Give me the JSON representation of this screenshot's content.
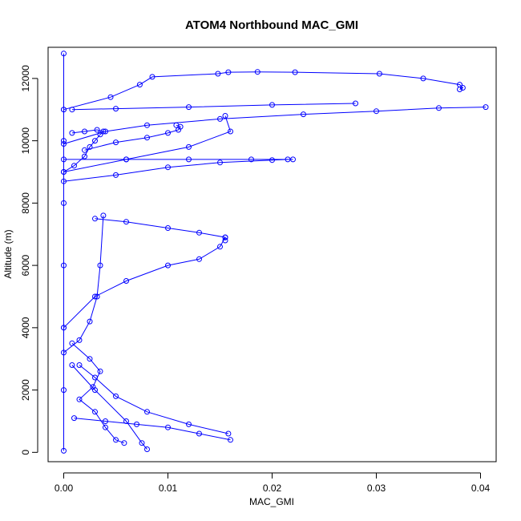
{
  "chart_data": {
    "type": "scatter",
    "title": "ATOM4 Northbound MAC_GMI",
    "xlabel": "MAC_GMI",
    "ylabel": "Altitude (m)",
    "xlim": [
      -0.0015,
      0.0415
    ],
    "ylim": [
      -300,
      13000
    ],
    "x_ticks": [
      0,
      0.01,
      0.02,
      0.03,
      0.04
    ],
    "x_tick_labels": [
      "0.00",
      "0.01",
      "0.02",
      "0.03",
      "0.04"
    ],
    "y_ticks": [
      0,
      2000,
      4000,
      6000,
      8000,
      10000,
      12000
    ],
    "y_tick_labels": [
      "0",
      "2000",
      "4000",
      "6000",
      "8000",
      "10000",
      "12000"
    ],
    "grid": false,
    "legend": "none",
    "marker": "open-circle",
    "connected": true,
    "color": "#0000ff",
    "series": [
      {
        "x": [
          0.0,
          0.0,
          0.0,
          0.0,
          0.0,
          0.0,
          0.0,
          0.0
        ],
        "y": [
          50,
          2000,
          4000,
          6000,
          8000,
          10000,
          11000,
          12800
        ]
      },
      {
        "x": [
          0.0,
          0.0045,
          0.0073,
          0.0085,
          0.0148,
          0.0158,
          0.0186,
          0.0222,
          0.0303,
          0.0345,
          0.038,
          0.0383,
          0.038
        ],
        "y": [
          11000,
          11400,
          11800,
          12050,
          12150,
          12200,
          12210,
          12200,
          12150,
          12000,
          11800,
          11700,
          11650
        ]
      },
      {
        "x": [
          0.0,
          0.004,
          0.008,
          0.015,
          0.023,
          0.03,
          0.036,
          0.0405
        ],
        "y": [
          9900,
          10300,
          10500,
          10700,
          10850,
          10950,
          11050,
          11080
        ]
      },
      {
        "x": [
          0.0008,
          0.005,
          0.012,
          0.02,
          0.028
        ],
        "y": [
          11000,
          11030,
          11080,
          11150,
          11200
        ]
      },
      {
        "x": [
          0.0,
          0.005,
          0.01,
          0.015,
          0.02,
          0.0215
        ],
        "y": [
          8700,
          8900,
          9150,
          9300,
          9380,
          9400
        ]
      },
      {
        "x": [
          0.0,
          0.006,
          0.012,
          0.018,
          0.022
        ],
        "y": [
          9400,
          9400,
          9400,
          9400,
          9400
        ]
      },
      {
        "x": [
          0.002,
          0.005,
          0.008,
          0.01,
          0.011,
          0.0112,
          0.0108
        ],
        "y": [
          9700,
          9950,
          10100,
          10250,
          10350,
          10450,
          10500
        ]
      },
      {
        "x": [
          0.003,
          0.006,
          0.01,
          0.013,
          0.0155,
          0.0155
        ],
        "y": [
          7500,
          7400,
          7200,
          7050,
          6900,
          6800
        ]
      },
      {
        "x": [
          0.0,
          0.003,
          0.006,
          0.01,
          0.013,
          0.015,
          0.0155
        ],
        "y": [
          4000,
          5000,
          5500,
          6000,
          6200,
          6600,
          6900
        ]
      },
      {
        "x": [
          0.0008,
          0.0025,
          0.0035,
          0.0028,
          0.0015,
          0.003,
          0.004,
          0.005,
          0.0058
        ],
        "y": [
          3500,
          3000,
          2600,
          2100,
          1700,
          1300,
          800,
          400,
          300
        ]
      },
      {
        "x": [
          0.001,
          0.004,
          0.007,
          0.01,
          0.013,
          0.016
        ],
        "y": [
          1100,
          1000,
          900,
          800,
          600,
          400
        ]
      },
      {
        "x": [
          0.0008,
          0.003,
          0.006,
          0.0075,
          0.008
        ],
        "y": [
          2800,
          2000,
          1000,
          300,
          100
        ]
      },
      {
        "x": [
          0.0015,
          0.003,
          0.005,
          0.008,
          0.012,
          0.0158
        ],
        "y": [
          2800,
          2400,
          1800,
          1300,
          900,
          600
        ]
      },
      {
        "x": [
          0.0,
          0.0015,
          0.0025,
          0.0032,
          0.0035,
          0.0038
        ],
        "y": [
          3200,
          3600,
          4200,
          5000,
          6000,
          7600
        ]
      },
      {
        "x": [
          0.0,
          0.001,
          0.002,
          0.0025,
          0.003,
          0.0035,
          0.0038,
          0.0032,
          0.002,
          0.0008
        ],
        "y": [
          9000,
          9200,
          9500,
          9800,
          10000,
          10200,
          10300,
          10350,
          10300,
          10250
        ]
      },
      {
        "x": [
          0.0,
          0.006,
          0.012,
          0.016,
          0.0155
        ],
        "y": [
          9000,
          9400,
          9800,
          10300,
          10800
        ]
      }
    ]
  }
}
